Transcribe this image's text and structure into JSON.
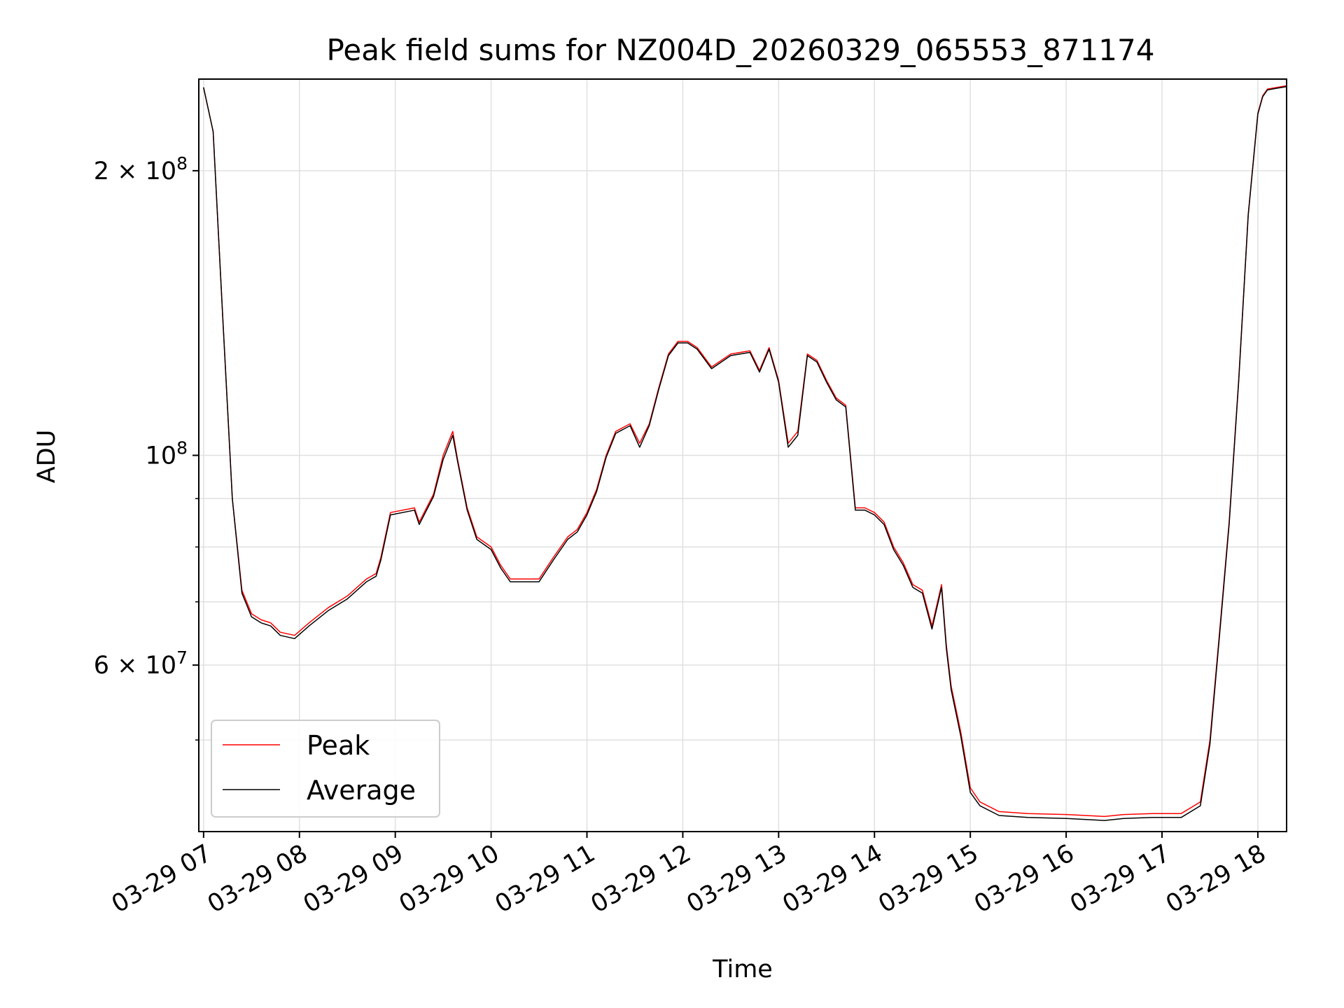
{
  "chart_data": {
    "type": "line",
    "title": "Peak field sums for NZ004D_20260329_065553_871174",
    "xlabel": "Time",
    "ylabel": "ADU",
    "yscale": "log",
    "ylim": [
      40000000,
      250000000
    ],
    "xlim": [
      6.95,
      18.3
    ],
    "grid": true,
    "legend_position": "lower-left",
    "x_ticks": [
      {
        "value": 7,
        "label": "03-29 07"
      },
      {
        "value": 8,
        "label": "03-29 08"
      },
      {
        "value": 9,
        "label": "03-29 09"
      },
      {
        "value": 10,
        "label": "03-29 10"
      },
      {
        "value": 11,
        "label": "03-29 11"
      },
      {
        "value": 12,
        "label": "03-29 12"
      },
      {
        "value": 13,
        "label": "03-29 13"
      },
      {
        "value": 14,
        "label": "03-29 14"
      },
      {
        "value": 15,
        "label": "03-29 15"
      },
      {
        "value": 16,
        "label": "03-29 16"
      },
      {
        "value": 17,
        "label": "03-29 17"
      },
      {
        "value": 18,
        "label": "03-29 18"
      }
    ],
    "y_major_ticks": [
      {
        "value": 60000000,
        "base": "6 × 10",
        "exp": "7"
      },
      {
        "value": 100000000,
        "base": "10",
        "exp": "8"
      },
      {
        "value": 200000000,
        "base": "2 × 10",
        "exp": "8"
      }
    ],
    "y_minor_gridlines": [
      50000000,
      70000000,
      80000000,
      90000000
    ],
    "series": [
      {
        "name": "Peak",
        "color": "#ff0000",
        "x": [
          7.0,
          7.1,
          7.2,
          7.3,
          7.4,
          7.5,
          7.6,
          7.7,
          7.8,
          7.95,
          8.1,
          8.3,
          8.5,
          8.7,
          8.8,
          8.85,
          8.95,
          9.2,
          9.25,
          9.4,
          9.5,
          9.6,
          9.65,
          9.75,
          9.85,
          10.0,
          10.1,
          10.2,
          10.35,
          10.5,
          10.65,
          10.8,
          10.9,
          11.0,
          11.1,
          11.2,
          11.3,
          11.45,
          11.55,
          11.65,
          11.75,
          11.85,
          11.95,
          12.05,
          12.15,
          12.3,
          12.5,
          12.7,
          12.8,
          12.9,
          13.0,
          13.1,
          13.2,
          13.3,
          13.4,
          13.5,
          13.6,
          13.7,
          13.8,
          13.9,
          14.0,
          14.1,
          14.2,
          14.3,
          14.4,
          14.5,
          14.6,
          14.7,
          14.75,
          14.8,
          14.9,
          15.0,
          15.1,
          15.3,
          15.6,
          16.0,
          16.4,
          16.6,
          16.9,
          17.2,
          17.4,
          17.5,
          17.6,
          17.7,
          17.8,
          17.9,
          18.0,
          18.05,
          18.1,
          18.2,
          18.3
        ],
        "values": [
          245000000,
          220000000,
          140000000,
          90000000,
          72000000,
          68000000,
          67000000,
          66500000,
          65000000,
          64500000,
          66500000,
          69000000,
          71000000,
          74000000,
          75000000,
          78000000,
          87000000,
          88000000,
          85000000,
          91000000,
          100000000,
          106000000,
          99000000,
          88000000,
          82000000,
          80000000,
          76500000,
          74000000,
          74000000,
          74000000,
          78000000,
          82000000,
          83500000,
          87000000,
          92000000,
          100000000,
          106000000,
          108000000,
          103000000,
          108000000,
          118000000,
          128000000,
          132000000,
          132000000,
          130000000,
          124000000,
          128000000,
          129000000,
          123000000,
          130000000,
          120000000,
          103000000,
          106000000,
          128000000,
          126000000,
          120000000,
          115000000,
          113000000,
          88000000,
          88000000,
          87000000,
          85000000,
          80000000,
          77000000,
          73000000,
          72000000,
          66000000,
          73000000,
          63000000,
          57000000,
          51000000,
          44500000,
          43000000,
          42000000,
          41800000,
          41700000,
          41500000,
          41700000,
          41800000,
          41800000,
          43000000,
          50000000,
          65000000,
          85000000,
          120000000,
          180000000,
          230000000,
          240000000,
          244000000,
          245000000,
          246000000
        ]
      },
      {
        "name": "Average",
        "color": "#000000",
        "x": [
          7.0,
          7.1,
          7.2,
          7.3,
          7.4,
          7.5,
          7.6,
          7.7,
          7.8,
          7.95,
          8.1,
          8.3,
          8.5,
          8.7,
          8.8,
          8.85,
          8.95,
          9.2,
          9.25,
          9.4,
          9.5,
          9.6,
          9.65,
          9.75,
          9.85,
          10.0,
          10.1,
          10.2,
          10.35,
          10.5,
          10.65,
          10.8,
          10.9,
          11.0,
          11.1,
          11.2,
          11.3,
          11.45,
          11.55,
          11.65,
          11.75,
          11.85,
          11.95,
          12.05,
          12.15,
          12.3,
          12.5,
          12.7,
          12.8,
          12.9,
          13.0,
          13.1,
          13.2,
          13.3,
          13.4,
          13.5,
          13.6,
          13.7,
          13.8,
          13.9,
          14.0,
          14.1,
          14.2,
          14.3,
          14.4,
          14.5,
          14.6,
          14.7,
          14.75,
          14.8,
          14.9,
          15.0,
          15.1,
          15.3,
          15.6,
          16.0,
          16.4,
          16.6,
          16.9,
          17.2,
          17.4,
          17.5,
          17.6,
          17.7,
          17.8,
          17.9,
          18.0,
          18.05,
          18.1,
          18.2,
          18.3
        ],
        "values": [
          245000000,
          220000000,
          140000000,
          90000000,
          71500000,
          67500000,
          66500000,
          66000000,
          64500000,
          64000000,
          66000000,
          68500000,
          70500000,
          73500000,
          74500000,
          77500000,
          86500000,
          87500000,
          84500000,
          90500000,
          99000000,
          105000000,
          98500000,
          87500000,
          81500000,
          79500000,
          76000000,
          73500000,
          73500000,
          73500000,
          77500000,
          81500000,
          83000000,
          86500000,
          91500000,
          99500000,
          105500000,
          107500000,
          102000000,
          107500000,
          117500000,
          127500000,
          131500000,
          131500000,
          129500000,
          123500000,
          127500000,
          128500000,
          122500000,
          129500000,
          119500000,
          102000000,
          105000000,
          127500000,
          125500000,
          119500000,
          114500000,
          112500000,
          87500000,
          87500000,
          86500000,
          84500000,
          79500000,
          76500000,
          72500000,
          71500000,
          65500000,
          72500000,
          62500000,
          56500000,
          50500000,
          44000000,
          42600000,
          41600000,
          41400000,
          41300000,
          41100000,
          41300000,
          41400000,
          41400000,
          42600000,
          49500000,
          64500000,
          84500000,
          119500000,
          179500000,
          229500000,
          239500000,
          243500000,
          244500000,
          245500000
        ]
      }
    ]
  }
}
